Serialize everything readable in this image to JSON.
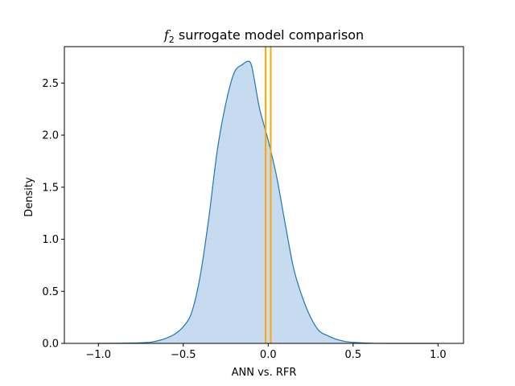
{
  "chart_data": {
    "type": "area",
    "title": {
      "symbol": "f",
      "subscript": "2",
      "text": " surrogate model comparison"
    },
    "xlabel": "ANN vs. RFR",
    "ylabel": "Density",
    "xlim": [
      -1.2,
      1.15
    ],
    "ylim": [
      0,
      2.85
    ],
    "xticks": [
      -1.0,
      -0.5,
      0.0,
      0.5,
      1.0
    ],
    "xtick_labels": [
      "−1.0",
      "−0.5",
      "0.0",
      "0.5",
      "1.0"
    ],
    "yticks": [
      0.0,
      0.5,
      1.0,
      1.5,
      2.0,
      2.5
    ],
    "ytick_labels": [
      "0.0",
      "0.5",
      "1.0",
      "1.5",
      "2.0",
      "2.5"
    ],
    "grid": false,
    "series": [
      {
        "line_color": "#1f77b4",
        "fill_color": "#c6dbef",
        "x": [
          -1.0,
          -0.8,
          -0.7,
          -0.65,
          -0.6,
          -0.55,
          -0.5,
          -0.45,
          -0.4,
          -0.35,
          -0.3,
          -0.25,
          -0.2,
          -0.15,
          -0.12,
          -0.1,
          -0.08,
          -0.05,
          0.0,
          0.05,
          0.1,
          0.15,
          0.2,
          0.25,
          0.3,
          0.35,
          0.4,
          0.45,
          0.5,
          0.55,
          0.6,
          0.7,
          1.0
        ],
        "y": [
          0.0,
          0.003,
          0.01,
          0.025,
          0.05,
          0.09,
          0.16,
          0.3,
          0.65,
          1.2,
          1.85,
          2.3,
          2.6,
          2.68,
          2.71,
          2.68,
          2.52,
          2.25,
          1.95,
          1.6,
          1.15,
          0.72,
          0.45,
          0.25,
          0.12,
          0.075,
          0.04,
          0.02,
          0.01,
          0.005,
          0.002,
          0.0,
          0.0
        ]
      }
    ],
    "vlines": [
      {
        "x": -0.015,
        "color": "#ffa500"
      },
      {
        "x": 0.015,
        "color": "#ffa500"
      }
    ]
  }
}
